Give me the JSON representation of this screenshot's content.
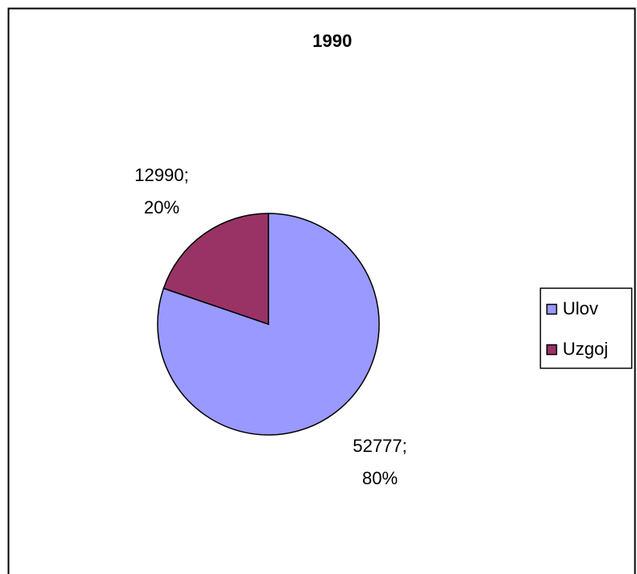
{
  "chart_data": {
    "type": "pie",
    "title": "1990",
    "categories": [
      "Ulov",
      "Uzgoj"
    ],
    "values": [
      52777,
      12990
    ],
    "value_labels": [
      "52777;",
      "12990;"
    ],
    "percents": [
      80,
      20
    ],
    "percent_labels": [
      "80%",
      "20%"
    ],
    "colors": [
      "#9999ff",
      "#993366"
    ],
    "legend": "right"
  }
}
